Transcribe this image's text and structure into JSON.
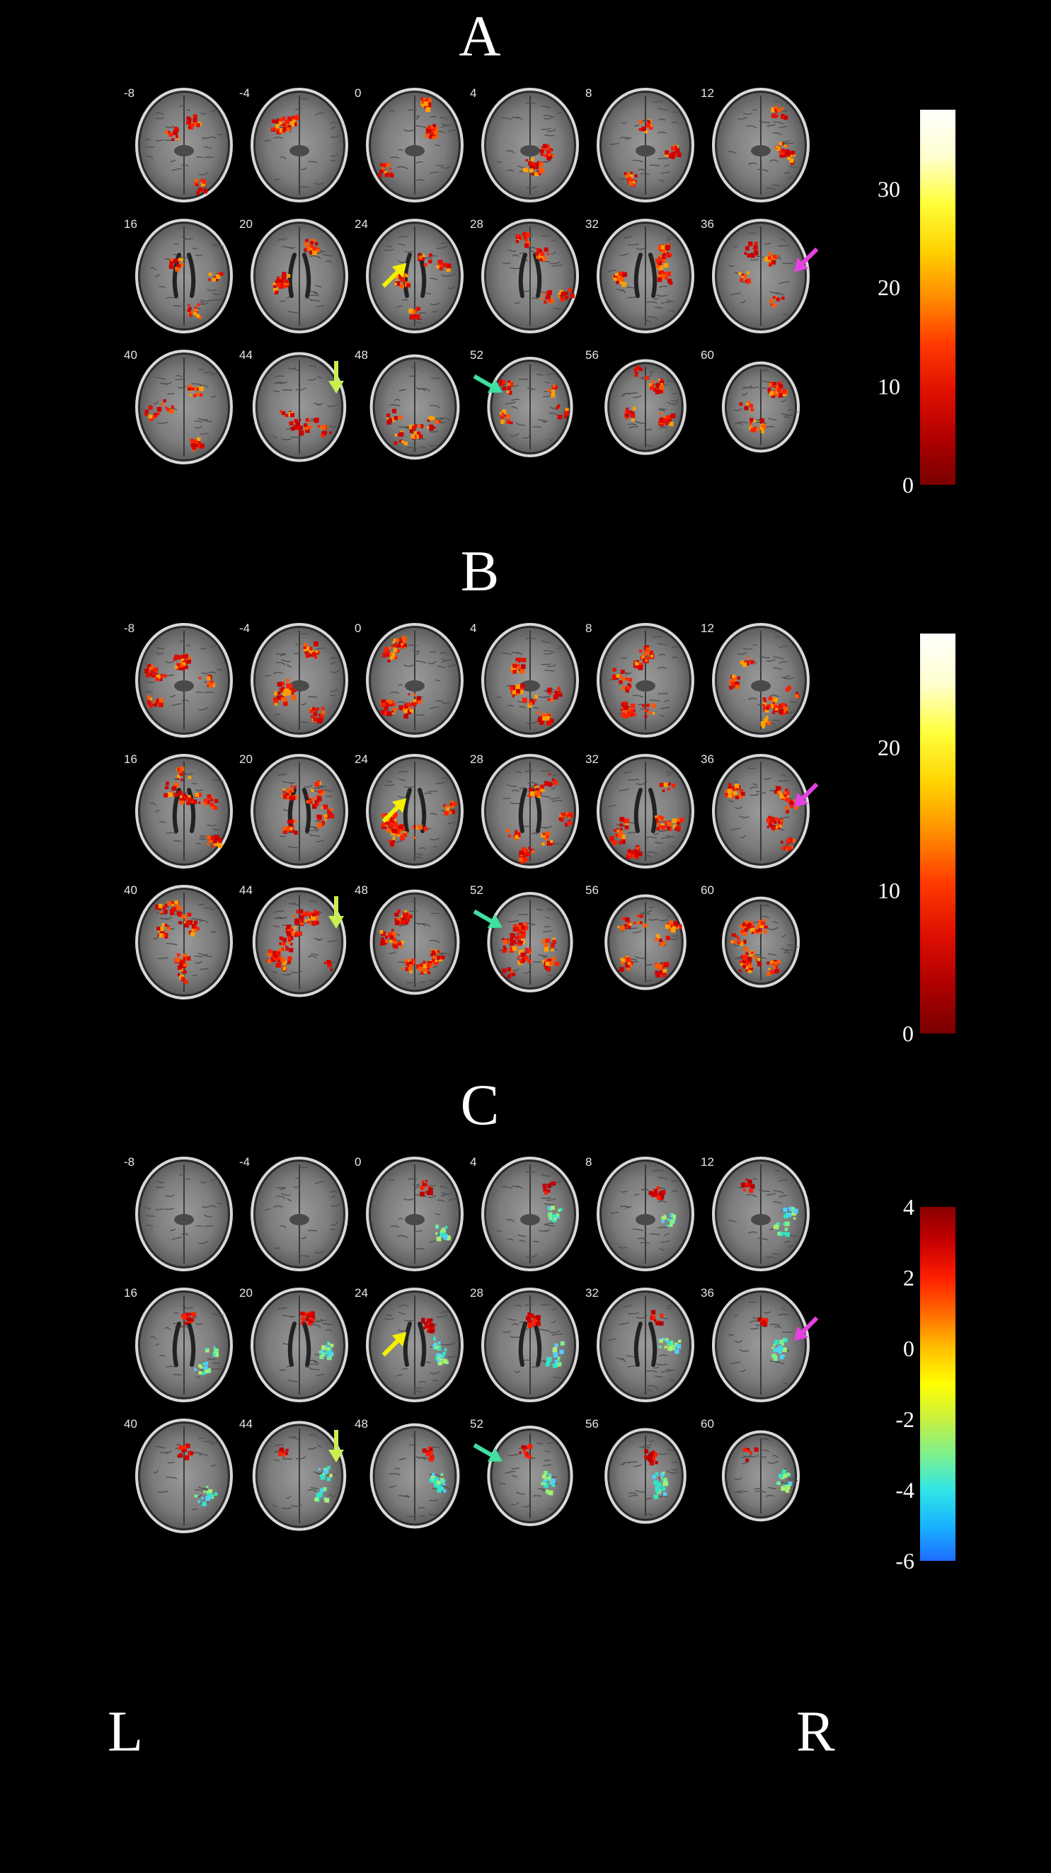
{
  "panels": [
    {
      "letter": "A",
      "slices": [
        "-8",
        "-4",
        "0",
        "4",
        "8",
        "12",
        "16",
        "20",
        "24",
        "28",
        "32",
        "36",
        "40",
        "44",
        "48",
        "52",
        "56",
        "60"
      ],
      "colorbar": {
        "colors": [
          "#7a0000",
          "#b00000",
          "#e01000",
          "#ff3a00",
          "#ff8c00",
          "#ffd200",
          "#ffff3a",
          "#ffffd0",
          "#ffffff"
        ],
        "ticks": [
          "30",
          "20",
          "10",
          "0"
        ],
        "tick_values": [
          30,
          20,
          10,
          0
        ],
        "range": [
          0,
          38
        ]
      }
    },
    {
      "letter": "B",
      "slices": [
        "-8",
        "-4",
        "0",
        "4",
        "8",
        "12",
        "16",
        "20",
        "24",
        "28",
        "32",
        "36",
        "40",
        "44",
        "48",
        "52",
        "56",
        "60"
      ],
      "colorbar": {
        "colors": [
          "#7a0000",
          "#b00000",
          "#e01000",
          "#ff3a00",
          "#ff8c00",
          "#ffd200",
          "#ffff3a",
          "#ffffd0",
          "#ffffff"
        ],
        "ticks": [
          "20",
          "10",
          "0"
        ],
        "tick_values": [
          20,
          10,
          0
        ],
        "range": [
          0,
          28
        ]
      }
    },
    {
      "letter": "C",
      "slices": [
        "-8",
        "-4",
        "0",
        "4",
        "8",
        "12",
        "16",
        "20",
        "24",
        "28",
        "32",
        "36",
        "40",
        "44",
        "48",
        "52",
        "56",
        "60"
      ],
      "colorbar": {
        "colors": [
          "#1e6cff",
          "#18b4ff",
          "#30e6e6",
          "#7cf08c",
          "#c8f040",
          "#ffff00",
          "#ffc000",
          "#ff6a00",
          "#ff1e00",
          "#c80000",
          "#8a0000"
        ],
        "ticks": [
          "4",
          "2",
          "0",
          "-2",
          "-4",
          "-6"
        ],
        "tick_values": [
          4,
          2,
          0,
          -2,
          -4,
          -6
        ],
        "range": [
          -6,
          4
        ]
      }
    }
  ],
  "orientation": {
    "left": "L",
    "right": "R"
  },
  "arrow_colors": {
    "yellow": "#f4f000",
    "magenta": "#e640e0",
    "lime": "#c8f050",
    "teal": "#40e0a0"
  }
}
